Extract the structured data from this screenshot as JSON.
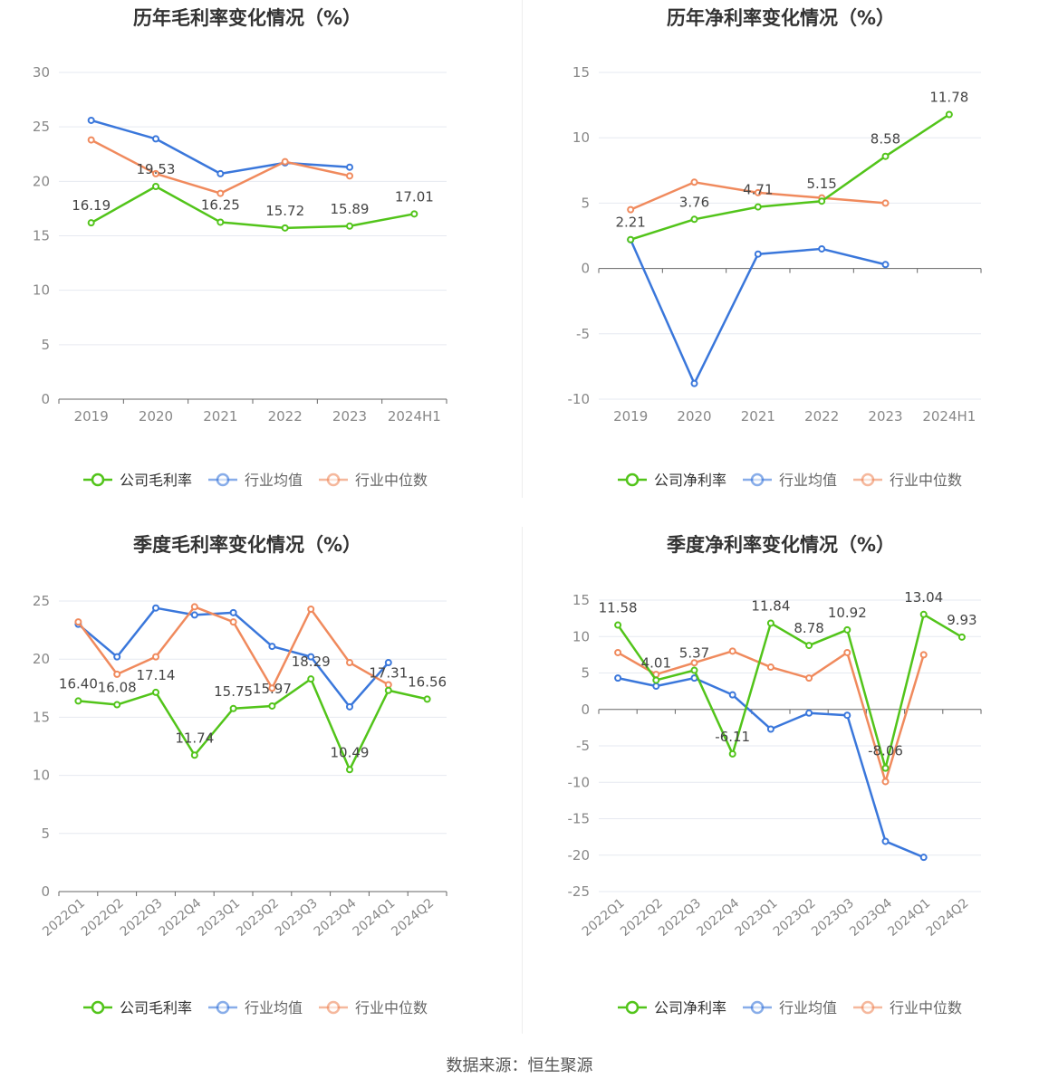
{
  "source": "数据来源：恒生聚源",
  "colors": {
    "company": "#52c41a",
    "average": "#3a77db",
    "median": "#f08a5d",
    "grid": "#e6e9f0",
    "axis": "#666666",
    "tick": "#888888"
  },
  "legend": {
    "company_gross": "公司毛利率",
    "company_net": "公司净利率",
    "average": "行业均值",
    "median": "行业中位数"
  },
  "chart_data": [
    {
      "type": "line",
      "title": "历年毛利率变化情况（%）",
      "categories": [
        "2019",
        "2020",
        "2021",
        "2022",
        "2023",
        "2024H1"
      ],
      "ylim": [
        0,
        30
      ],
      "yticks": [
        0,
        5,
        10,
        15,
        20,
        25,
        30
      ],
      "series": [
        {
          "name": "公司毛利率",
          "color": "#52c41a",
          "labels": true,
          "values": [
            16.19,
            19.53,
            16.25,
            15.72,
            15.89,
            17.01
          ]
        },
        {
          "name": "行业均值",
          "color": "#3a77db",
          "values": [
            25.6,
            23.9,
            20.7,
            21.7,
            21.3,
            null
          ]
        },
        {
          "name": "行业中位数",
          "color": "#f08a5d",
          "values": [
            23.8,
            20.7,
            18.9,
            21.8,
            20.5,
            null
          ]
        }
      ]
    },
    {
      "type": "line",
      "title": "历年净利率变化情况（%）",
      "categories": [
        "2019",
        "2020",
        "2021",
        "2022",
        "2023",
        "2024H1"
      ],
      "ylim": [
        -10,
        15
      ],
      "yticks": [
        -10,
        -5,
        0,
        5,
        10,
        15
      ],
      "series": [
        {
          "name": "公司净利率",
          "color": "#52c41a",
          "labels": true,
          "values": [
            2.21,
            3.76,
            4.71,
            5.15,
            8.58,
            11.78
          ]
        },
        {
          "name": "行业均值",
          "color": "#3a77db",
          "values": [
            2.2,
            -8.8,
            1.1,
            1.5,
            0.3,
            null
          ]
        },
        {
          "name": "行业中位数",
          "color": "#f08a5d",
          "values": [
            4.5,
            6.6,
            5.8,
            5.4,
            5.0,
            null
          ]
        }
      ]
    },
    {
      "type": "line",
      "title": "季度毛利率变化情况（%）",
      "categories": [
        "2022Q1",
        "2022Q2",
        "2022Q3",
        "2022Q4",
        "2023Q1",
        "2023Q2",
        "2023Q3",
        "2023Q4",
        "2024Q1",
        "2024Q2"
      ],
      "ylim": [
        0,
        25
      ],
      "yticks": [
        0,
        5,
        10,
        15,
        20,
        25
      ],
      "series": [
        {
          "name": "公司毛利率",
          "color": "#52c41a",
          "labels": true,
          "values": [
            16.4,
            16.08,
            17.14,
            11.74,
            15.75,
            15.97,
            18.29,
            10.49,
            17.31,
            16.56
          ]
        },
        {
          "name": "行业均值",
          "color": "#3a77db",
          "values": [
            23.0,
            20.2,
            24.4,
            23.8,
            24.0,
            21.1,
            20.2,
            15.9,
            19.7,
            null
          ]
        },
        {
          "name": "行业中位数",
          "color": "#f08a5d",
          "values": [
            23.2,
            18.7,
            20.2,
            24.5,
            23.2,
            17.5,
            24.3,
            19.7,
            17.8,
            null
          ]
        }
      ]
    },
    {
      "type": "line",
      "title": "季度净利率变化情况（%）",
      "categories": [
        "2022Q1",
        "2022Q2",
        "2022Q3",
        "2022Q4",
        "2023Q1",
        "2023Q2",
        "2023Q3",
        "2023Q4",
        "2024Q1",
        "2024Q2"
      ],
      "ylim": [
        -25,
        15
      ],
      "yticks": [
        -25,
        -20,
        -15,
        -10,
        -5,
        0,
        5,
        10,
        15
      ],
      "series": [
        {
          "name": "公司净利率",
          "color": "#52c41a",
          "labels": true,
          "values": [
            11.58,
            4.01,
            5.37,
            -6.11,
            11.84,
            8.78,
            10.92,
            -8.06,
            13.04,
            9.93
          ]
        },
        {
          "name": "行业均值",
          "color": "#3a77db",
          "values": [
            4.3,
            3.2,
            4.3,
            2.0,
            -2.7,
            -0.5,
            -0.8,
            -18.1,
            -20.3,
            null
          ]
        },
        {
          "name": "行业中位数",
          "color": "#f08a5d",
          "values": [
            7.8,
            4.8,
            6.4,
            8.0,
            5.8,
            4.3,
            7.8,
            -9.9,
            7.5,
            null
          ]
        }
      ]
    }
  ]
}
